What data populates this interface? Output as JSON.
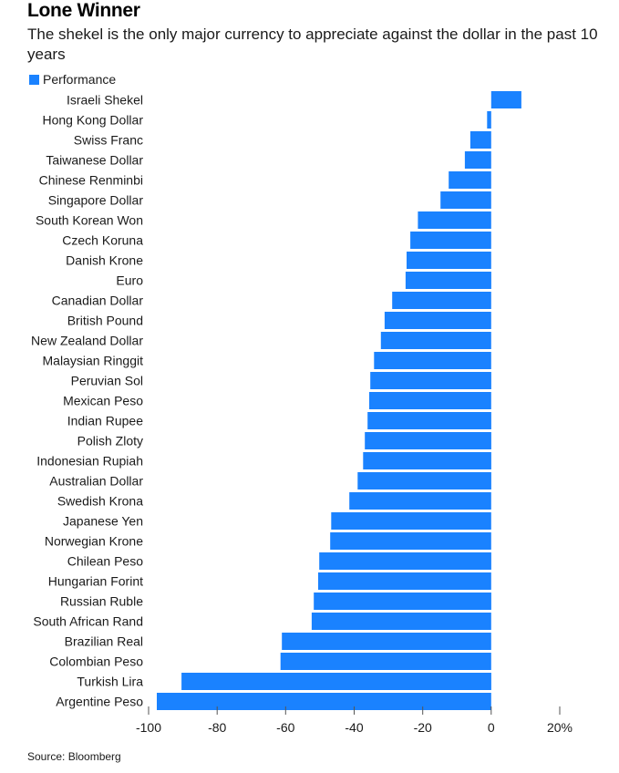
{
  "title": "Lone Winner",
  "subtitle": "The shekel is the only major currency to appreciate against the dollar in the past 10 years",
  "legend_label": "Performance",
  "source": "Source: Bloomberg",
  "colors": {
    "bar": "#1a82ff",
    "axis": "#555555"
  },
  "chart_data": {
    "type": "bar",
    "orientation": "horizontal",
    "title": "Lone Winner",
    "xlabel": "",
    "ylabel": "",
    "xlim": [
      -100,
      20
    ],
    "ticks": [
      -100,
      -80,
      -60,
      -40,
      -20,
      0,
      20
    ],
    "tick_labels": [
      "-100",
      "-80",
      "-60",
      "-40",
      "-20",
      "0",
      "20%"
    ],
    "grid": false,
    "legend": "top-left",
    "series": [
      {
        "name": "Performance",
        "categories": [
          "Israeli Shekel",
          "Hong Kong Dollar",
          "Swiss Franc",
          "Taiwanese Dollar",
          "Chinese Renminbi",
          "Singapore Dollar",
          "South Korean Won",
          "Czech Koruna",
          "Danish Krone",
          "Euro",
          "Canadian Dollar",
          "British Pound",
          "New Zealand Dollar",
          "Malaysian Ringgit",
          "Peruvian Sol",
          "Mexican Peso",
          "Indian Rupee",
          "Polish Zloty",
          "Indonesian Rupiah",
          "Australian Dollar",
          "Swedish Krona",
          "Japanese Yen",
          "Norwegian Krone",
          "Chilean Peso",
          "Hungarian Forint",
          "Russian Ruble",
          "South African Rand",
          "Brazilian Real",
          "Colombian Peso",
          "Turkish Lira",
          "Argentine Peso"
        ],
        "values": [
          8.8,
          -1.2,
          -6.1,
          -7.7,
          -12.4,
          -14.8,
          -21.4,
          -23.6,
          -24.7,
          -25.0,
          -28.9,
          -31.1,
          -32.2,
          -34.2,
          -35.3,
          -35.6,
          -36.1,
          -36.9,
          -37.4,
          -39.0,
          -41.4,
          -46.7,
          -47.0,
          -50.2,
          -50.5,
          -51.8,
          -52.4,
          -61.1,
          -61.5,
          -90.4,
          -97.6
        ]
      }
    ]
  }
}
